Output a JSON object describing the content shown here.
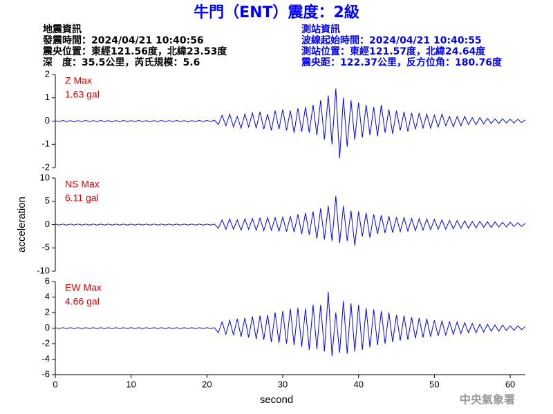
{
  "header": {
    "title": "牛門（ENT）震度：2級",
    "left": [
      "地震資訊",
      "發震時間：2024/04/21 10:40:56",
      "震央位置：東經121.56度，北緯23.53度",
      "深　度：35.5公里，芮氏規模：5.6"
    ],
    "right": [
      "測站資訊",
      "波線起始時間：2024/04/21 10:40:55",
      "測站位置：東經121.57度，北緯24.64度",
      "震央距：122.37公里，反方位角：180.76度"
    ]
  },
  "footer": "中央氣象署",
  "chart_data": [
    {
      "type": "line",
      "annotations": [
        "Z Max",
        "1.63 gal"
      ],
      "color": "#0000ff",
      "annotation_color": "#e00000",
      "xlim": [
        0,
        62
      ],
      "ylim": [
        -2,
        2
      ],
      "yticks": [
        -2,
        -1,
        0,
        1,
        2
      ],
      "x": [
        0,
        0.5,
        1,
        1.5,
        2,
        2.5,
        3,
        3.5,
        4,
        4.5,
        5,
        5.5,
        6,
        6.5,
        7,
        7.5,
        8,
        8.5,
        9,
        9.5,
        10,
        10.5,
        11,
        11.5,
        12,
        12.5,
        13,
        13.5,
        14,
        14.5,
        15,
        15.5,
        16,
        16.5,
        17,
        17.5,
        18,
        18.5,
        19,
        19.5,
        20,
        20.5,
        21,
        21.5,
        22,
        22.5,
        23,
        23.5,
        24,
        24.5,
        25,
        25.5,
        26,
        26.5,
        27,
        27.5,
        28,
        28.5,
        29,
        29.5,
        30,
        30.5,
        31,
        31.5,
        32,
        32.5,
        33,
        33.5,
        34,
        34.5,
        35,
        35.5,
        36,
        36.5,
        37,
        37.5,
        38,
        38.5,
        39,
        39.5,
        40,
        40.5,
        41,
        41.5,
        42,
        42.5,
        43,
        43.5,
        44,
        44.5,
        45,
        45.5,
        46,
        46.5,
        47,
        47.5,
        48,
        48.5,
        49,
        49.5,
        50,
        50.5,
        51,
        51.5,
        52,
        52.5,
        53,
        53.5,
        54,
        54.5,
        55,
        55.5,
        56,
        56.5,
        57,
        57.5,
        58,
        58.5,
        59,
        59.5,
        60,
        60.5,
        61,
        61.5,
        62
      ],
      "values": [
        0.02,
        -0.02,
        0.03,
        -0.02,
        0.02,
        -0.03,
        0.02,
        -0.02,
        0.03,
        -0.02,
        0.02,
        -0.02,
        0.03,
        -0.02,
        0.02,
        -0.03,
        0.02,
        -0.02,
        0.03,
        -0.02,
        0.02,
        -0.02,
        0.03,
        -0.02,
        0.02,
        -0.03,
        0.02,
        -0.02,
        0.03,
        -0.02,
        0.02,
        -0.02,
        0.03,
        -0.02,
        0.02,
        -0.03,
        0.02,
        -0.02,
        0.03,
        -0.02,
        0.03,
        -0.02,
        0.04,
        -0.15,
        0.25,
        -0.2,
        0.3,
        -0.25,
        0.2,
        -0.3,
        0.3,
        -0.25,
        0.35,
        -0.3,
        0.4,
        -0.35,
        0.3,
        -0.4,
        0.45,
        -0.35,
        0.5,
        -0.4,
        0.45,
        -0.5,
        0.55,
        -0.45,
        0.6,
        -0.5,
        0.7,
        -0.6,
        0.9,
        -0.8,
        1.1,
        -1.0,
        1.4,
        -1.6,
        1.0,
        -1.1,
        0.9,
        -0.8,
        0.8,
        -0.7,
        0.7,
        -0.6,
        0.6,
        -0.65,
        0.7,
        -0.5,
        0.5,
        -0.55,
        0.45,
        -0.4,
        0.4,
        -0.45,
        0.35,
        -0.35,
        0.35,
        -0.3,
        0.3,
        -0.3,
        0.25,
        -0.25,
        0.3,
        -0.2,
        0.2,
        -0.25,
        0.2,
        -0.2,
        0.2,
        -0.15,
        0.15,
        -0.15,
        0.15,
        -0.12,
        0.12,
        -0.1,
        0.1,
        -0.1,
        0.1,
        -0.08,
        0.08,
        -0.08,
        0.08,
        -0.06,
        0.05
      ]
    },
    {
      "type": "line",
      "annotations": [
        "NS Max",
        "6.11 gal"
      ],
      "color": "#0000ff",
      "annotation_color": "#e00000",
      "ylabel": "acceleration",
      "xlim": [
        0,
        62
      ],
      "ylim": [
        -10,
        10
      ],
      "yticks": [
        -10,
        -5,
        0,
        5,
        10
      ],
      "x": [
        0,
        0.5,
        1,
        1.5,
        2,
        2.5,
        3,
        3.5,
        4,
        4.5,
        5,
        5.5,
        6,
        6.5,
        7,
        7.5,
        8,
        8.5,
        9,
        9.5,
        10,
        10.5,
        11,
        11.5,
        12,
        12.5,
        13,
        13.5,
        14,
        14.5,
        15,
        15.5,
        16,
        16.5,
        17,
        17.5,
        18,
        18.5,
        19,
        19.5,
        20,
        20.5,
        21,
        21.5,
        22,
        22.5,
        23,
        23.5,
        24,
        24.5,
        25,
        25.5,
        26,
        26.5,
        27,
        27.5,
        28,
        28.5,
        29,
        29.5,
        30,
        30.5,
        31,
        31.5,
        32,
        32.5,
        33,
        33.5,
        34,
        34.5,
        35,
        35.5,
        36,
        36.5,
        37,
        37.5,
        38,
        38.5,
        39,
        39.5,
        40,
        40.5,
        41,
        41.5,
        42,
        42.5,
        43,
        43.5,
        44,
        44.5,
        45,
        45.5,
        46,
        46.5,
        47,
        47.5,
        48,
        48.5,
        49,
        49.5,
        50,
        50.5,
        51,
        51.5,
        52,
        52.5,
        53,
        53.5,
        54,
        54.5,
        55,
        55.5,
        56,
        56.5,
        57,
        57.5,
        58,
        58.5,
        59,
        59.5,
        60,
        60.5,
        61,
        61.5,
        62
      ],
      "values": [
        0.1,
        -0.1,
        0.1,
        -0.1,
        0.1,
        -0.1,
        0.1,
        -0.1,
        0.1,
        -0.1,
        0.1,
        -0.1,
        0.1,
        -0.1,
        0.1,
        -0.1,
        0.1,
        -0.1,
        0.1,
        -0.1,
        0.1,
        -0.1,
        0.1,
        -0.1,
        0.1,
        -0.1,
        0.1,
        -0.1,
        0.1,
        -0.1,
        0.1,
        -0.1,
        0.1,
        -0.1,
        0.1,
        -0.1,
        0.1,
        -0.1,
        0.1,
        -0.1,
        0.1,
        -0.1,
        0.1,
        -0.8,
        1.0,
        -1.0,
        1.2,
        -1.0,
        1.0,
        -1.2,
        1.2,
        -1.0,
        1.3,
        -1.2,
        1.4,
        -1.3,
        1.5,
        -1.2,
        1.5,
        -1.4,
        1.6,
        -1.5,
        1.8,
        -1.6,
        2.2,
        -2.0,
        2.5,
        -2.2,
        2.8,
        -3.0,
        3.5,
        -3.2,
        4.0,
        -3.5,
        6.1,
        -4.0,
        4.0,
        -3.5,
        3.0,
        -4.5,
        2.8,
        -2.5,
        2.5,
        -2.8,
        2.2,
        -2.0,
        2.0,
        -1.8,
        1.8,
        -1.7,
        1.6,
        -1.5,
        1.5,
        -1.4,
        1.3,
        -1.3,
        1.3,
        -1.2,
        1.2,
        -1.1,
        1.1,
        -1.0,
        1.0,
        -1.0,
        0.9,
        -0.9,
        0.9,
        -0.8,
        0.8,
        -0.8,
        0.7,
        -0.7,
        0.7,
        -0.6,
        0.6,
        -0.6,
        0.6,
        -0.5,
        0.5,
        -0.5,
        0.5,
        -0.4,
        0.4,
        -0.4,
        0.3
      ]
    },
    {
      "type": "line",
      "annotations": [
        "EW Max",
        "4.66 gal"
      ],
      "color": "#0000ff",
      "annotation_color": "#e00000",
      "xlabel": "second",
      "xlim": [
        0,
        62
      ],
      "xticks": [
        0,
        10,
        20,
        30,
        40,
        50,
        60
      ],
      "ylim": [
        -6,
        6
      ],
      "yticks": [
        -6,
        -4,
        -2,
        0,
        2,
        4,
        6
      ],
      "x": [
        0,
        0.5,
        1,
        1.5,
        2,
        2.5,
        3,
        3.5,
        4,
        4.5,
        5,
        5.5,
        6,
        6.5,
        7,
        7.5,
        8,
        8.5,
        9,
        9.5,
        10,
        10.5,
        11,
        11.5,
        12,
        12.5,
        13,
        13.5,
        14,
        14.5,
        15,
        15.5,
        16,
        16.5,
        17,
        17.5,
        18,
        18.5,
        19,
        19.5,
        20,
        20.5,
        21,
        21.5,
        22,
        22.5,
        23,
        23.5,
        24,
        24.5,
        25,
        25.5,
        26,
        26.5,
        27,
        27.5,
        28,
        28.5,
        29,
        29.5,
        30,
        30.5,
        31,
        31.5,
        32,
        32.5,
        33,
        33.5,
        34,
        34.5,
        35,
        35.5,
        36,
        36.5,
        37,
        37.5,
        38,
        38.5,
        39,
        39.5,
        40,
        40.5,
        41,
        41.5,
        42,
        42.5,
        43,
        43.5,
        44,
        44.5,
        45,
        45.5,
        46,
        46.5,
        47,
        47.5,
        48,
        48.5,
        49,
        49.5,
        50,
        50.5,
        51,
        51.5,
        52,
        52.5,
        53,
        53.5,
        54,
        54.5,
        55,
        55.5,
        56,
        56.5,
        57,
        57.5,
        58,
        58.5,
        59,
        59.5,
        60,
        60.5,
        61,
        61.5,
        62
      ],
      "values": [
        0.05,
        -0.05,
        0.05,
        -0.05,
        0.05,
        -0.05,
        0.05,
        -0.05,
        0.05,
        -0.05,
        0.05,
        -0.05,
        0.05,
        -0.05,
        0.05,
        -0.05,
        0.05,
        -0.05,
        0.05,
        -0.05,
        0.05,
        -0.05,
        0.05,
        -0.05,
        0.05,
        -0.05,
        0.05,
        -0.05,
        0.05,
        -0.05,
        0.05,
        -0.05,
        0.05,
        -0.05,
        0.05,
        -0.05,
        0.05,
        -0.05,
        0.05,
        -0.05,
        0.05,
        -0.05,
        0.05,
        -0.6,
        0.8,
        -0.8,
        1.0,
        -0.9,
        1.2,
        -1.1,
        1.3,
        -1.2,
        1.5,
        -1.4,
        1.6,
        -1.5,
        1.7,
        -1.8,
        2.0,
        -1.9,
        2.2,
        -2.0,
        2.5,
        -2.2,
        2.6,
        -2.4,
        2.5,
        -2.8,
        3.0,
        -2.7,
        3.0,
        -3.0,
        4.66,
        -3.6,
        2.0,
        -3.2,
        3.5,
        -3.3,
        3.2,
        -3.0,
        3.0,
        -2.8,
        2.6,
        -2.5,
        2.4,
        -2.2,
        2.2,
        -2.0,
        2.0,
        -1.8,
        1.7,
        -1.6,
        1.6,
        -1.5,
        1.4,
        -1.3,
        1.3,
        -1.2,
        1.2,
        -1.1,
        1.0,
        -1.0,
        0.9,
        -0.9,
        0.8,
        -0.8,
        0.8,
        -0.7,
        0.7,
        -0.6,
        0.6,
        -0.6,
        0.5,
        -0.5,
        0.5,
        -0.4,
        0.4,
        -0.4,
        0.4,
        -0.3,
        0.3,
        -0.3,
        0.3,
        -0.2,
        0.2
      ]
    }
  ]
}
